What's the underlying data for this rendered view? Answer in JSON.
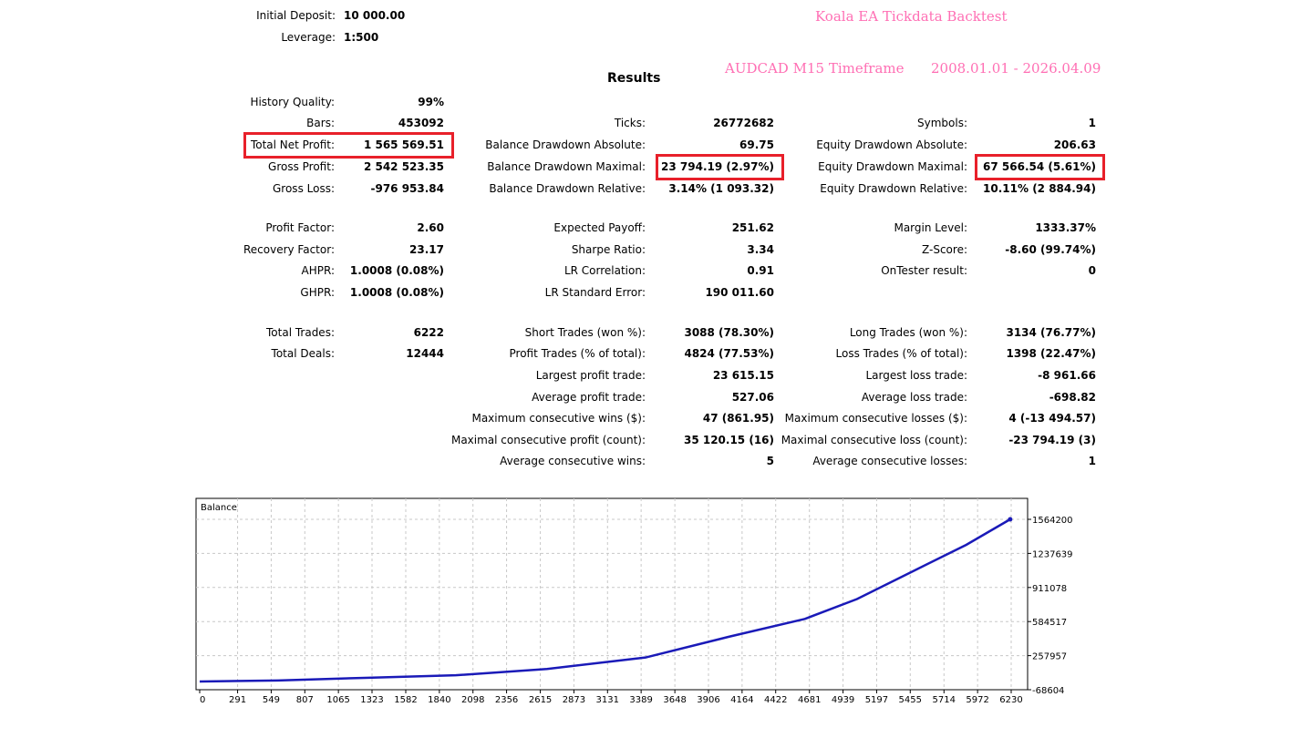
{
  "header": {
    "initial_deposit_label": "Initial Deposit:",
    "initial_deposit": "10 000.00",
    "leverage_label": "Leverage:",
    "leverage": "1:500",
    "overlay_title": "Koala EA Tickdata Backtest",
    "overlay_subtitle": "AUDCAD M15 Timeframe",
    "overlay_dates": "2008.01.01 - 2026.04.09",
    "results_title": "Results"
  },
  "col1": [
    {
      "label": "History Quality:",
      "value": "99%"
    },
    {
      "label": "Bars:",
      "value": "453092"
    },
    {
      "label": "Total Net Profit:",
      "value": "1 565 569.51",
      "highlight": true
    },
    {
      "label": "Gross Profit:",
      "value": "2 542 523.35"
    },
    {
      "label": "Gross Loss:",
      "value": "-976 953.84"
    },
    {
      "label": "Profit Factor:",
      "value": "2.60"
    },
    {
      "label": "Recovery Factor:",
      "value": "23.17"
    },
    {
      "label": "AHPR:",
      "value": "1.0008 (0.08%)"
    },
    {
      "label": "GHPR:",
      "value": "1.0008 (0.08%)"
    },
    {
      "label": "Total Trades:",
      "value": "6222"
    },
    {
      "label": "Total Deals:",
      "value": "12444"
    }
  ],
  "col2": [
    {
      "label": "Ticks:",
      "value": "26772682"
    },
    {
      "label": "Balance Drawdown Absolute:",
      "value": "69.75"
    },
    {
      "label": "Balance Drawdown Maximal:",
      "value": "23 794.19 (2.97%)",
      "highlight": true
    },
    {
      "label": "Balance Drawdown Relative:",
      "value": "3.14% (1 093.32)"
    },
    {
      "label": "Expected Payoff:",
      "value": "251.62"
    },
    {
      "label": "Sharpe Ratio:",
      "value": "3.34"
    },
    {
      "label": "LR Correlation:",
      "value": "0.91"
    },
    {
      "label": "LR Standard Error:",
      "value": "190 011.60"
    },
    {
      "label": "Short Trades (won %):",
      "value": "3088 (78.30%)"
    },
    {
      "label": "Profit Trades (% of total):",
      "value": "4824 (77.53%)"
    },
    {
      "label": "Largest profit trade:",
      "value": "23 615.15"
    },
    {
      "label": "Average profit trade:",
      "value": "527.06"
    },
    {
      "label": "Maximum consecutive wins ($):",
      "value": "47 (861.95)"
    },
    {
      "label": "Maximal consecutive profit (count):",
      "value": "35 120.15 (16)"
    },
    {
      "label": "Average consecutive wins:",
      "value": "5"
    }
  ],
  "col3": [
    {
      "label": "Symbols:",
      "value": "1"
    },
    {
      "label": "Equity Drawdown Absolute:",
      "value": "206.63"
    },
    {
      "label": "Equity Drawdown Maximal:",
      "value": "67 566.54 (5.61%)",
      "highlight": true
    },
    {
      "label": "Equity Drawdown Relative:",
      "value": "10.11% (2 884.94)"
    },
    {
      "label": "Margin Level:",
      "value": "1333.37%"
    },
    {
      "label": "Z-Score:",
      "value": "-8.60 (99.74%)"
    },
    {
      "label": "OnTester result:",
      "value": "0"
    },
    {
      "label": "Long Trades (won %):",
      "value": "3134 (76.77%)"
    },
    {
      "label": "Loss Trades (% of total):",
      "value": "1398 (22.47%)"
    },
    {
      "label": "Largest loss trade:",
      "value": "-8 961.66"
    },
    {
      "label": "Average loss trade:",
      "value": "-698.82"
    },
    {
      "label": "Maximum consecutive losses ($):",
      "value": "4 (-13 494.57)"
    },
    {
      "label": "Maximal consecutive loss (count):",
      "value": "-23 794.19 (3)"
    },
    {
      "label": "Average consecutive losses:",
      "value": "1"
    }
  ],
  "chart_data": {
    "type": "line",
    "title": "Balance",
    "xlabel": "",
    "ylabel": "",
    "x_ticks": [
      0,
      291,
      549,
      807,
      1065,
      1323,
      1582,
      1840,
      2098,
      2356,
      2615,
      2873,
      3131,
      3389,
      3648,
      3906,
      4164,
      4422,
      4681,
      4939,
      5197,
      5455,
      5714,
      5972,
      6230
    ],
    "y_ticks": [
      -68604,
      257957,
      584517,
      911078,
      1237639,
      1564200
    ],
    "xlim": [
      0,
      6230
    ],
    "ylim": [
      -68604,
      1564200
    ],
    "grid": true,
    "line_color": "#1a1ab8",
    "series": [
      {
        "name": "Balance",
        "x": [
          0,
          600,
          1267,
          1966,
          2666,
          3422,
          4066,
          4646,
          5046,
          5465,
          5885,
          6222
        ],
        "y": [
          10000,
          20000,
          45000,
          70000,
          130000,
          240000,
          440000,
          610000,
          800000,
          1060000,
          1320000,
          1564200
        ]
      }
    ]
  }
}
